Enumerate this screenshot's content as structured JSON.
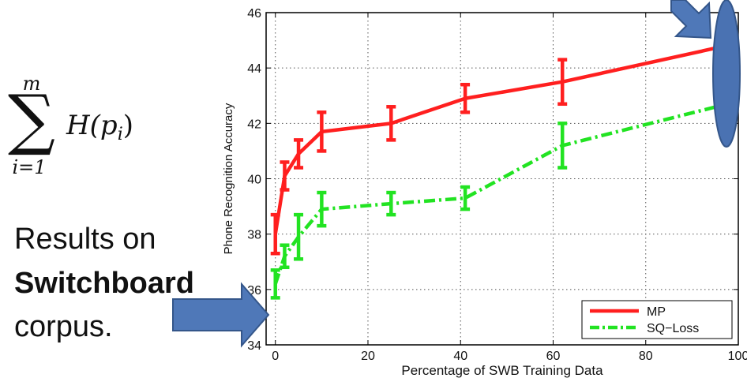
{
  "formula": {
    "upper": "m",
    "lower": "i=1",
    "body": "H(p",
    "sub": "i",
    "close": ")"
  },
  "caption": {
    "line1": "Results on",
    "line2": "Switchboard",
    "line3": "corpus."
  },
  "colors": {
    "mp": "#ff1f1f",
    "sq": "#22e322",
    "arrow": "#4f78b8",
    "arrow_edge": "#34568a",
    "ellipse": "#4a72b2"
  },
  "chart_data": {
    "type": "line",
    "xlabel": "Percentage of SWB Training Data",
    "ylabel": "Phone Recognition Accuracy",
    "xlim": [
      -2,
      100
    ],
    "ylim": [
      34,
      46
    ],
    "xticks": [
      0,
      20,
      40,
      60,
      80,
      100
    ],
    "yticks": [
      34,
      36,
      38,
      40,
      42,
      44,
      46
    ],
    "grid": true,
    "legend": "bottom-right",
    "series": [
      {
        "name": "MP",
        "style": "solid",
        "x": [
          0,
          2,
          5,
          10,
          25,
          41,
          62,
          100
        ],
        "y": [
          38.0,
          40.1,
          40.9,
          41.7,
          42.0,
          42.9,
          43.5,
          44.9
        ],
        "err": [
          0.7,
          0.5,
          0.5,
          0.7,
          0.6,
          0.5,
          0.8,
          0.0
        ]
      },
      {
        "name": "SQ−Loss",
        "style": "dashdot",
        "x": [
          0,
          2,
          5,
          10,
          25,
          41,
          62,
          100
        ],
        "y": [
          36.2,
          37.2,
          37.9,
          38.9,
          39.1,
          39.3,
          41.2,
          42.8
        ],
        "err": [
          0.5,
          0.4,
          0.8,
          0.6,
          0.4,
          0.4,
          0.8,
          0.0
        ]
      }
    ]
  }
}
